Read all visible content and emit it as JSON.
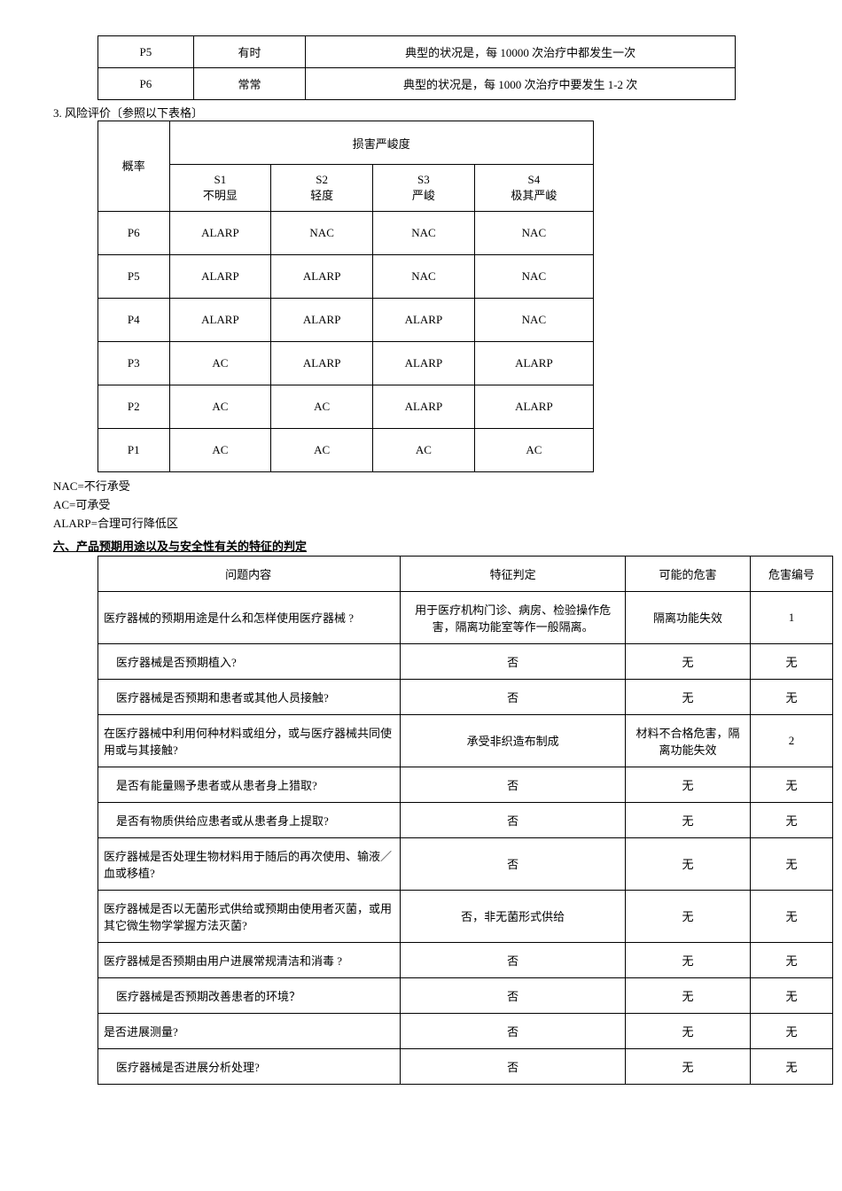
{
  "freqTable": {
    "rows": [
      {
        "code": "P5",
        "label": "有时",
        "desc": "典型的状况是，每 10000  次治疗中都发生一次"
      },
      {
        "code": "P6",
        "label": "常常",
        "desc": "典型的状况是，每 1000  次治疗中要发生 1-2  次"
      }
    ]
  },
  "sectionLabel3": "3. 风险评价〔参照以下表格〕",
  "severityTable": {
    "topHeader": "损害严峻度",
    "probLabel": "概率",
    "cols": [
      {
        "code": "S1",
        "label": "不明显"
      },
      {
        "code": "S2",
        "label": "轻度"
      },
      {
        "code": "S3",
        "label": "严峻"
      },
      {
        "code": "S4",
        "label": "极其严峻"
      }
    ],
    "rows": [
      {
        "p": "P6",
        "cells": [
          "ALARP",
          "NAC",
          "NAC",
          "NAC"
        ]
      },
      {
        "p": "P5",
        "cells": [
          "ALARP",
          "ALARP",
          "NAC",
          "NAC"
        ]
      },
      {
        "p": "P4",
        "cells": [
          "ALARP",
          "ALARP",
          "ALARP",
          "NAC"
        ]
      },
      {
        "p": "P3",
        "cells": [
          "AC",
          "ALARP",
          "ALARP",
          "ALARP"
        ]
      },
      {
        "p": "P2",
        "cells": [
          "AC",
          "AC",
          "ALARP",
          "ALARP"
        ]
      },
      {
        "p": "P1",
        "cells": [
          "AC",
          "AC",
          "AC",
          "AC"
        ]
      }
    ]
  },
  "notes": {
    "nac": "NAC=不行承受",
    "ac": "AC=可承受",
    "alarp": "ALARP=合理可行降低区"
  },
  "heading6": "六、产品预期用途以及与安全性有关的特征的判定",
  "qaTable": {
    "headers": {
      "q": "问题内容",
      "det": "特征判定",
      "haz": "可能的危害",
      "num": "危害编号"
    },
    "rows": [
      {
        "q": "医疗器械的预期用途是什么和怎样使用医疗器械 ?",
        "indent": false,
        "det": "用于医疗机构门诊、病房、检验操作危害，隔离功能室等作一般隔离。",
        "detMultiline": true,
        "haz": "隔离功能失效",
        "hazMultiline": true,
        "num": "1"
      },
      {
        "q": "医疗器械是否预期植入?",
        "indent": true,
        "det": "否",
        "haz": "无",
        "num": "无"
      },
      {
        "q": "医疗器械是否预期和患者或其他人员接触?",
        "indent": true,
        "det": "否",
        "haz": "无",
        "num": "无"
      },
      {
        "q": "在医疗器械中利用何种材料或组分，或与医疗器械共同使用或与其接触?",
        "indent": false,
        "det": "承受非织造布制成",
        "haz": "材料不合格危害，隔离功能失效",
        "num": "2"
      },
      {
        "q": "是否有能量赐予患者或从患者身上猎取?",
        "indent": true,
        "det": "否",
        "haz": "无",
        "num": "无"
      },
      {
        "q": "是否有物质供给应患者或从患者身上提取?",
        "indent": true,
        "det": "否",
        "haz": "无",
        "num": "无"
      },
      {
        "q": "医疗器械是否处理生物材料用于随后的再次使用、输液／血或移植?",
        "indent": false,
        "det": "否",
        "haz": "无",
        "num": "无"
      },
      {
        "q": "医疗器械是否以无菌形式供给或预期由使用者灭菌，或用其它微生物学掌握方法灭菌?",
        "indent": false,
        "det": "否，非无菌形式供给",
        "haz": "无",
        "num": "无"
      },
      {
        "q": "医疗器械是否预期由用户进展常规清洁和消毒 ?",
        "indent": false,
        "det": "否",
        "haz": "无",
        "num": "无"
      },
      {
        "q": "医疗器械是否预期改善患者的环境？",
        "indent": true,
        "det": "否",
        "haz": "无",
        "num": "无"
      },
      {
        "q": "是否进展测量?",
        "indent": false,
        "det": "否",
        "haz": "无",
        "num": "无"
      },
      {
        "q": "医疗器械是否进展分析处理?",
        "indent": true,
        "det": "否",
        "haz": "无",
        "num": "无"
      }
    ]
  }
}
